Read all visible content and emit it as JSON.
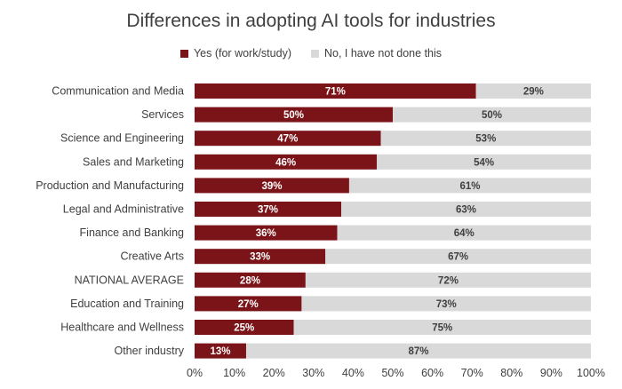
{
  "chart_data": {
    "type": "bar",
    "orientation": "horizontal",
    "stacked": true,
    "title": "Differences in adopting AI tools for industries",
    "categories": [
      "Communication and Media",
      "Services",
      "Science and Engineering",
      "Sales and Marketing",
      "Production and Manufacturing",
      "Legal and Administrative",
      "Finance and Banking",
      "Creative Arts",
      "NATIONAL AVERAGE",
      "Education and Training",
      "Healthcare and Wellness",
      "Other industry"
    ],
    "series": [
      {
        "name": "Yes (for work/study)",
        "color": "#7b1418",
        "label_color": "#ffffff",
        "values": [
          71,
          50,
          47,
          46,
          39,
          37,
          36,
          33,
          28,
          27,
          25,
          13
        ],
        "labels": [
          "71%",
          "50%",
          "47%",
          "46%",
          "39%",
          "37%",
          "36%",
          "33%",
          "28%",
          "27%",
          "25%",
          "13%"
        ]
      },
      {
        "name": "No, I have not done this",
        "color": "#d9d9d9",
        "label_color": "#404040",
        "values": [
          29,
          50,
          53,
          54,
          61,
          63,
          64,
          67,
          72,
          73,
          75,
          87
        ],
        "labels": [
          "29%",
          "50%",
          "53%",
          "54%",
          "61%",
          "63%",
          "64%",
          "67%",
          "72%",
          "73%",
          "75%",
          "87%"
        ]
      }
    ],
    "xlim": [
      0,
      100
    ],
    "x_ticks": [
      0,
      10,
      20,
      30,
      40,
      50,
      60,
      70,
      80,
      90,
      100
    ],
    "x_tick_labels": [
      "0%",
      "10%",
      "20%",
      "30%",
      "40%",
      "50%",
      "60%",
      "70%",
      "80%",
      "90%",
      "100%"
    ],
    "grid": false,
    "legend_position": "top"
  }
}
